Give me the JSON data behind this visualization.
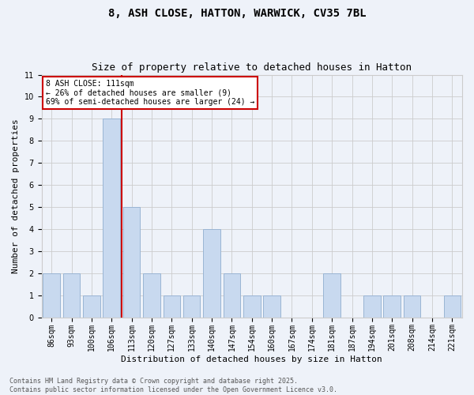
{
  "title1": "8, ASH CLOSE, HATTON, WARWICK, CV35 7BL",
  "title2": "Size of property relative to detached houses in Hatton",
  "xlabel": "Distribution of detached houses by size in Hatton",
  "ylabel": "Number of detached properties",
  "categories": [
    "86sqm",
    "93sqm",
    "100sqm",
    "106sqm",
    "113sqm",
    "120sqm",
    "127sqm",
    "133sqm",
    "140sqm",
    "147sqm",
    "154sqm",
    "160sqm",
    "167sqm",
    "174sqm",
    "181sqm",
    "187sqm",
    "194sqm",
    "201sqm",
    "208sqm",
    "214sqm",
    "221sqm"
  ],
  "values": [
    2,
    2,
    1,
    9,
    5,
    2,
    1,
    1,
    4,
    2,
    1,
    1,
    0,
    0,
    2,
    0,
    1,
    1,
    1,
    0,
    1
  ],
  "bar_color": "#c8d9ef",
  "bar_edge_color": "#9ab5d4",
  "red_line_x": 3.5,
  "annotation_line1": "8 ASH CLOSE: 111sqm",
  "annotation_line2": "← 26% of detached houses are smaller (9)",
  "annotation_line3": "69% of semi-detached houses are larger (24) →",
  "annotation_box_color": "#ffffff",
  "annotation_box_edge": "#cc0000",
  "ylim_max": 11,
  "yticks": [
    0,
    1,
    2,
    3,
    4,
    5,
    6,
    7,
    8,
    9,
    10,
    11
  ],
  "grid_color": "#cccccc",
  "bg_color": "#eef2f9",
  "footer_line1": "Contains HM Land Registry data © Crown copyright and database right 2025.",
  "footer_line2": "Contains public sector information licensed under the Open Government Licence v3.0.",
  "title1_fontsize": 10,
  "title2_fontsize": 9,
  "tick_fontsize": 7,
  "axis_label_fontsize": 8,
  "annotation_fontsize": 7,
  "footer_fontsize": 6
}
